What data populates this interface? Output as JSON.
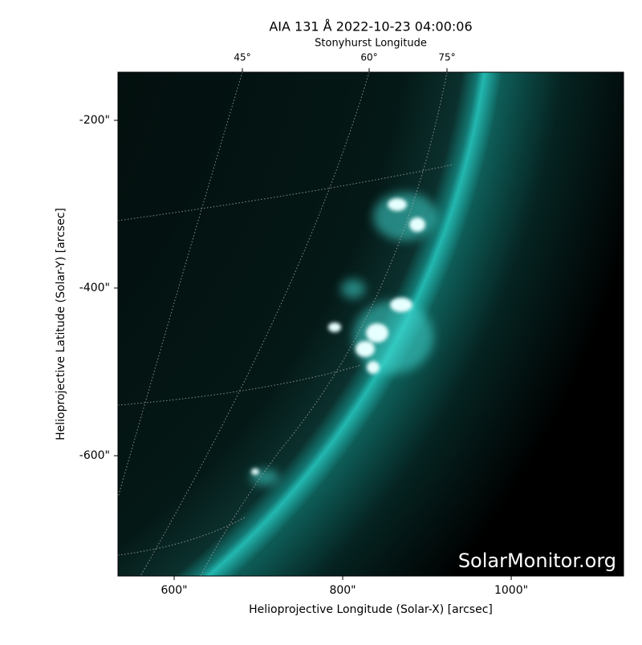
{
  "chart_data": {
    "type": "image",
    "title": "AIA 131 Å 2022-10-23 04:00:06",
    "xlabel": "Helioprojective Longitude (Solar-X) [arcsec]",
    "ylabel": "Helioprojective Latitude (Solar-Y) [arcsec]",
    "xlim": [
      533.3,
      1133.3
    ],
    "ylim": [
      -743.5,
      -142.6
    ],
    "xticks": [
      {
        "value": 600,
        "label": "600\""
      },
      {
        "value": 800,
        "label": "800\""
      },
      {
        "value": 1000,
        "label": "1000\""
      }
    ],
    "yticks": [
      {
        "value": -200,
        "label": "-200\""
      },
      {
        "value": -400,
        "label": "-400\""
      },
      {
        "value": -600,
        "label": "-600\""
      }
    ],
    "top_axis": {
      "label": "Stonyhurst Longitude",
      "ticks": [
        {
          "value": 45,
          "label": "45°"
        },
        {
          "value": 60,
          "label": "60°"
        },
        {
          "value": 75,
          "label": "75°"
        }
      ]
    },
    "watermark": "SolarMonitor.org",
    "color": "#1fb5ad"
  }
}
